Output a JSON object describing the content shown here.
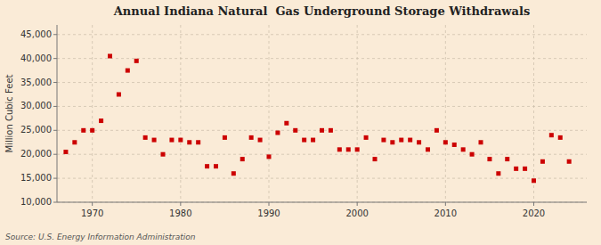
{
  "chart_data": {
    "type": "scatter",
    "title": "Annual Indiana Natural  Gas Underground Storage Withdrawals",
    "y_label": "Million Cubic Feet",
    "annotations": [
      "Source: U.S. Energy Information Administration"
    ],
    "color": "#cc0000",
    "marker": "square",
    "grid": true,
    "xlim": [
      1966,
      2026
    ],
    "ylim": [
      10000,
      47000
    ],
    "xticks": [
      1970,
      1980,
      1990,
      2000,
      2010,
      2020
    ],
    "yticks": [
      {
        "value": 10000,
        "label": "10,000"
      },
      {
        "value": 15000,
        "label": "15,000"
      },
      {
        "value": 20000,
        "label": "20,000"
      },
      {
        "value": 25000,
        "label": "25,000"
      },
      {
        "value": 30000,
        "label": "30,000"
      },
      {
        "value": 35000,
        "label": "35,000"
      },
      {
        "value": 40000,
        "label": "40,000"
      },
      {
        "value": 45000,
        "label": "45,000"
      }
    ],
    "x": [
      1967,
      1968,
      1969,
      1970,
      1971,
      1972,
      1973,
      1974,
      1975,
      1976,
      1977,
      1978,
      1979,
      1980,
      1981,
      1982,
      1983,
      1984,
      1985,
      1986,
      1987,
      1988,
      1989,
      1990,
      1991,
      1992,
      1993,
      1994,
      1995,
      1996,
      1997,
      1998,
      1999,
      2000,
      2001,
      2002,
      2003,
      2004,
      2005,
      2006,
      2007,
      2008,
      2009,
      2010,
      2011,
      2012,
      2013,
      2014,
      2015,
      2016,
      2017,
      2018,
      2019,
      2020,
      2021,
      2022,
      2023,
      2024
    ],
    "values": [
      20500,
      22500,
      25000,
      25000,
      27000,
      40500,
      32500,
      37500,
      39500,
      23500,
      23000,
      20000,
      23000,
      23000,
      22500,
      22500,
      17500,
      17500,
      23500,
      16000,
      19000,
      23500,
      23000,
      19500,
      24500,
      26500,
      25000,
      23000,
      23000,
      25000,
      25000,
      21000,
      21000,
      21000,
      23500,
      19000,
      23000,
      22500,
      23000,
      23000,
      22500,
      21000,
      25000,
      22500,
      22000,
      21000,
      20000,
      22500,
      19000,
      16000,
      19000,
      17000,
      17000,
      14500,
      18500,
      24000,
      23500,
      18500
    ]
  }
}
